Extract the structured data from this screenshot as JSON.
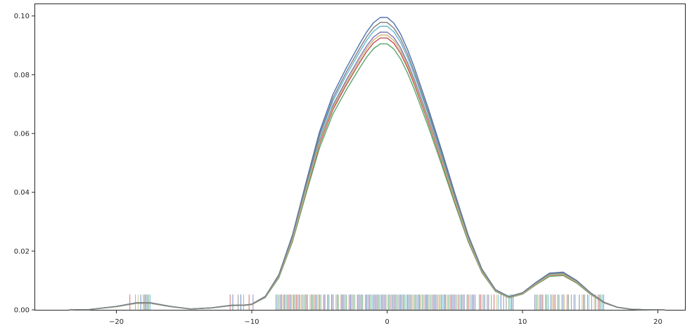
{
  "chart_data": {
    "type": "line",
    "title": "",
    "xlabel": "",
    "ylabel": "",
    "xlim": [
      -26,
      22
    ],
    "ylim": [
      0,
      0.104
    ],
    "x_ticks": [
      -20,
      -10,
      0,
      10,
      20
    ],
    "x_tick_labels": [
      "−20",
      "−10",
      "0",
      "10",
      "20"
    ],
    "y_ticks": [
      0.0,
      0.02,
      0.04,
      0.06,
      0.08,
      0.1
    ],
    "y_tick_labels": [
      "0.00",
      "0.02",
      "0.04",
      "0.06",
      "0.08",
      "0.10"
    ],
    "grid": false,
    "legend": "none",
    "rug_height": 0.0052,
    "kde_x": [
      -23.5,
      -22,
      -20,
      -18.5,
      -17.5,
      -16,
      -14.5,
      -13,
      -11.5,
      -10.5,
      -10,
      -9,
      -8,
      -7,
      -6,
      -5,
      -4,
      -3,
      -2,
      -1.5,
      -1,
      -0.5,
      0,
      0.5,
      1,
      1.5,
      2,
      3,
      4,
      5,
      6,
      7,
      8,
      9,
      10,
      11,
      12,
      13,
      14,
      15,
      16,
      17,
      18,
      19,
      20,
      20.5
    ],
    "series": [
      {
        "color": "#4c72b0",
        "peak": 0.0995,
        "rug": [
          -18.2,
          -17.8,
          -11.4,
          -10.8,
          -8.2,
          -7.6,
          -7.1,
          -6.5,
          -5.9,
          -5.2,
          -4.6,
          -4.0,
          -3.3,
          -2.7,
          -2.1,
          -1.5,
          -0.9,
          -0.3,
          0.4,
          1.0,
          1.6,
          2.3,
          2.9,
          3.5,
          4.2,
          4.8,
          5.5,
          6.3,
          7.2,
          8.4,
          9.3,
          11.3,
          12.1,
          13.0,
          14.2,
          15.4
        ]
      },
      {
        "color": "#55a868",
        "peak": 0.0905,
        "rug": [
          -18.0,
          -17.6,
          -8.0,
          -7.4,
          -6.8,
          -6.1,
          -5.5,
          -4.9,
          -4.3,
          -3.6,
          -3.0,
          -2.4,
          -1.8,
          -1.2,
          -0.6,
          0.1,
          0.7,
          1.3,
          2.0,
          2.6,
          3.2,
          3.9,
          4.5,
          5.1,
          5.9,
          6.8,
          7.7,
          9.0,
          11.0,
          11.8,
          12.7,
          13.6,
          14.8,
          15.8
        ]
      },
      {
        "color": "#c44e52",
        "peak": 0.0925,
        "rug": [
          -19.0,
          -17.9,
          -11.6,
          -10.2,
          -7.8,
          -7.3,
          -6.7,
          -6.0,
          -5.4,
          -4.7,
          -4.1,
          -3.4,
          -2.8,
          -2.2,
          -1.6,
          -1.0,
          -0.4,
          0.2,
          0.9,
          1.5,
          2.1,
          2.8,
          3.4,
          4.0,
          4.7,
          5.3,
          6.0,
          6.9,
          7.9,
          9.2,
          11.5,
          12.4,
          13.3,
          14.5,
          15.6
        ]
      },
      {
        "color": "#8172b2",
        "peak": 0.0945,
        "rug": [
          -17.7,
          -9.9,
          -7.9,
          -7.2,
          -6.6,
          -5.9,
          -5.3,
          -4.6,
          -4.0,
          -3.3,
          -2.7,
          -2.0,
          -1.4,
          -0.8,
          -0.2,
          0.5,
          1.1,
          1.8,
          2.4,
          3.0,
          3.7,
          4.3,
          5.0,
          5.7,
          6.5,
          7.4,
          8.6,
          10.9,
          11.7,
          12.6,
          13.8,
          15.1,
          16.0
        ]
      },
      {
        "color": "#ccb974",
        "peak": 0.0935,
        "rug": [
          -18.4,
          -7.7,
          -7.0,
          -6.4,
          -5.7,
          -5.1,
          -4.4,
          -3.8,
          -3.1,
          -2.5,
          -1.9,
          -1.3,
          -0.7,
          0.0,
          0.6,
          1.2,
          1.9,
          2.5,
          3.1,
          3.8,
          4.4,
          5.2,
          6.1,
          7.0,
          8.1,
          11.2,
          12.2,
          13.1,
          14.4,
          15.3
        ]
      },
      {
        "color": "#64b5cd",
        "peak": 0.0965,
        "rug": [
          -18.6,
          -17.5,
          -10.6,
          -8.1,
          -7.5,
          -6.9,
          -6.2,
          -5.6,
          -5.0,
          -4.3,
          -3.7,
          -3.1,
          -2.5,
          -1.9,
          -1.1,
          -0.5,
          0.3,
          0.8,
          1.4,
          2.2,
          2.7,
          3.3,
          4.1,
          4.6,
          5.4,
          6.2,
          7.1,
          8.2,
          9.1,
          11.1,
          11.9,
          12.9,
          13.9,
          14.9,
          15.9
        ]
      },
      {
        "color": "#7f7f7f",
        "peak": 0.0978,
        "rug": [
          -17.9,
          -11.0,
          -7.6,
          -6.9,
          -6.3,
          -5.6,
          -5.0,
          -4.4,
          -3.7,
          -3.2,
          -2.6,
          -1.9,
          -1.3,
          -0.7,
          -0.1,
          0.6,
          1.2,
          1.7,
          2.4,
          3.0,
          3.6,
          4.3,
          4.9,
          5.6,
          6.4,
          7.5,
          8.8,
          11.4,
          12.3,
          13.4,
          14.6,
          15.7
        ]
      }
    ]
  }
}
